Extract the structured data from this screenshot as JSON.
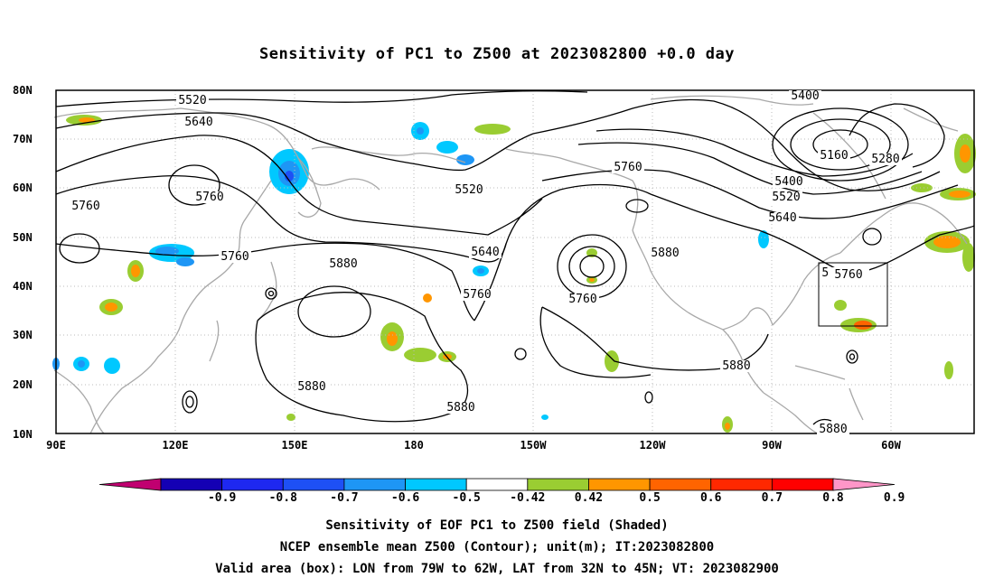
{
  "title": "Sensitivity of PC1 to Z500 at 2023082800 +0.0 day",
  "map": {
    "lon_labels": [
      "90E",
      "120E",
      "150E",
      "180",
      "150W",
      "120W",
      "90W",
      "60W"
    ],
    "lat_labels": [
      "80N",
      "70N",
      "60N",
      "50N",
      "40N",
      "30N",
      "20N",
      "10N"
    ],
    "contour_labels": [
      "5520",
      "5640",
      "5760",
      "5760",
      "5760",
      "5760",
      "5880",
      "5880",
      "5880",
      "5520",
      "5760",
      "5640",
      "5760",
      "5760",
      "5880",
      "5880",
      "5400",
      "5160",
      "5280",
      "5400",
      "5520",
      "5640",
      "5760",
      "5880"
    ],
    "box_label": "5760"
  },
  "colorbar": {
    "labels": [
      "-0.9",
      "-0.8",
      "-0.7",
      "-0.6",
      "-0.5",
      "-0.42",
      "0.42",
      "0.5",
      "0.6",
      "0.7",
      "0.8",
      "0.9"
    ],
    "colors": [
      "#c00070",
      "#1400b4",
      "#1e28f0",
      "#1e50f5",
      "#1e96f5",
      "#00c8ff",
      "#ffffff",
      "#9acd32",
      "#ff9600",
      "#ff6400",
      "#ff2800",
      "#ff0000",
      "#ff96c8"
    ]
  },
  "caption": {
    "line1": "Sensitivity of EOF PC1 to Z500 field (Shaded)",
    "line2": "NCEP ensemble mean Z500 (Contour); unit(m); IT:2023082800",
    "line3": "Valid area (box): LON from 79W to 62W, LAT from 32N to 45N; VT: 2023082900"
  }
}
